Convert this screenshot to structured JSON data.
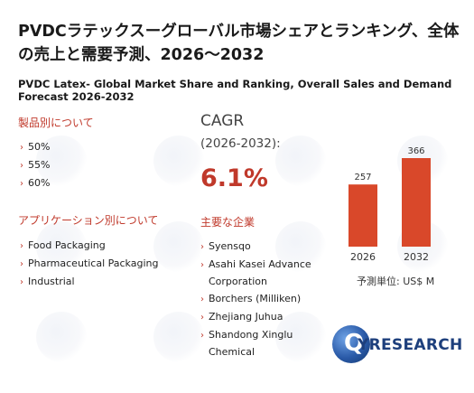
{
  "header": {
    "title": "PVDCラテックスーグローバル市場シェアとランキング、全体の売上と需要予測、2026～2032",
    "subtitle": "PVDC Latex- Global Market Share and Ranking, Overall Sales and Demand Forecast 2026-2032"
  },
  "product_section": {
    "heading": "製品別について",
    "items": [
      "50%",
      "55%",
      "60%"
    ]
  },
  "application_section": {
    "heading": "アプリケーション別について",
    "items": [
      "Food Packaging",
      "Pharmaceutical Packaging",
      "Industrial"
    ]
  },
  "cagr": {
    "label": "CAGR",
    "period": "(2026-2032):",
    "value": "6.1%"
  },
  "companies_section": {
    "heading": "主要な企業",
    "items": [
      "Syensqo",
      "Asahi Kasei Advance Corporation",
      "Borchers (Milliken)",
      "Zhejiang Juhua",
      "Shandong Xinglu Chemical"
    ]
  },
  "chart_data": {
    "type": "bar",
    "categories": [
      "2026",
      "2032"
    ],
    "values": [
      257,
      366
    ],
    "unit_label": "予測単位:  US$ M",
    "bar_color": "#d9482a"
  },
  "logo": {
    "text_main": "YRESEARCH",
    "accent_letter": "Q"
  }
}
